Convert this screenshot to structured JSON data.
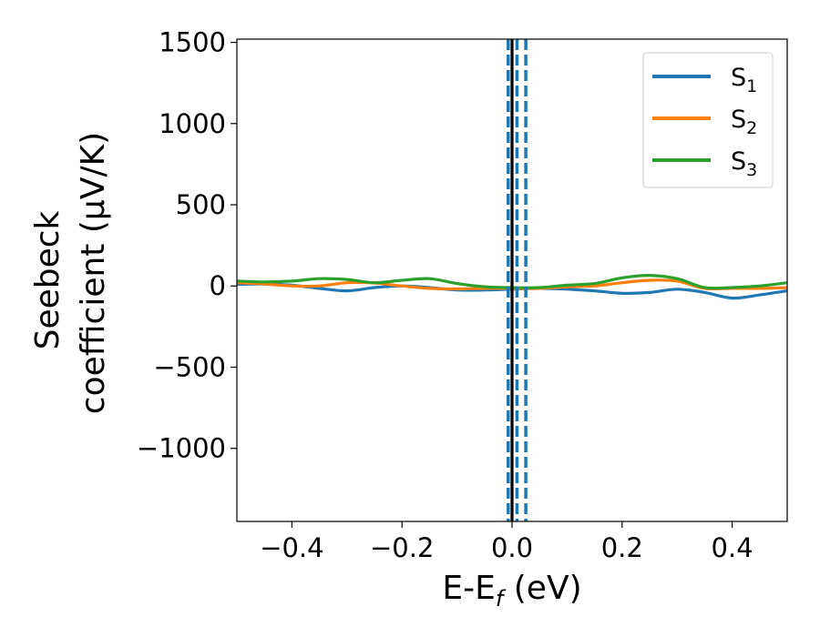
{
  "chart_data": {
    "type": "line",
    "xlabel_main": "E-E",
    "xlabel_sub": "f",
    "xlabel_unit": " (eV)",
    "ylabel_line1": "Seebeck",
    "ylabel_line2": "coefficient  (μV/K)",
    "xlim": [
      -0.5,
      0.5
    ],
    "ylim": [
      -1450,
      1520
    ],
    "xticks": [
      -0.4,
      -0.2,
      0.0,
      0.2,
      0.4
    ],
    "xtick_labels": [
      "−0.4",
      "−0.2",
      "0.0",
      "0.2",
      "0.4"
    ],
    "yticks": [
      -1000,
      -500,
      0,
      500,
      1000,
      1500
    ],
    "ytick_labels": [
      "−1000",
      "−500",
      "0",
      "500",
      "1000",
      "1500"
    ],
    "grid": false,
    "legend_position": "top-right",
    "x": [
      -0.5,
      -0.45,
      -0.4,
      -0.35,
      -0.3,
      -0.25,
      -0.2,
      -0.15,
      -0.1,
      -0.05,
      0.0,
      0.05,
      0.1,
      0.15,
      0.2,
      0.25,
      0.3,
      0.35,
      0.4,
      0.45,
      0.5
    ],
    "series": [
      {
        "name": "S",
        "sub": "1",
        "color": "#1f77b4",
        "values": [
          10,
          12,
          5,
          -15,
          -30,
          -10,
          0,
          -10,
          -25,
          -25,
          -20,
          -15,
          -20,
          -30,
          -45,
          -40,
          -20,
          -40,
          -75,
          -55,
          -30
        ]
      },
      {
        "name": "S",
        "sub": "2",
        "color": "#ff7f0e",
        "values": [
          20,
          12,
          0,
          0,
          20,
          18,
          0,
          -15,
          -18,
          -15,
          -15,
          -15,
          -5,
          0,
          20,
          35,
          30,
          -15,
          -15,
          -15,
          -10
        ]
      },
      {
        "name": "S",
        "sub": "3",
        "color": "#2ca02c",
        "values": [
          30,
          25,
          30,
          45,
          40,
          20,
          35,
          45,
          15,
          -5,
          -10,
          -10,
          5,
          15,
          50,
          65,
          45,
          -10,
          -10,
          0,
          20
        ]
      }
    ],
    "vlines": [
      {
        "x": 0.0,
        "color": "#000000",
        "style": "solid"
      },
      {
        "x": -0.007,
        "color": "#1f77b4",
        "style": "dashed"
      },
      {
        "x": 0.009,
        "color": "#1f77b4",
        "style": "dashed"
      },
      {
        "x": 0.025,
        "color": "#1f77b4",
        "style": "dashed"
      }
    ]
  }
}
